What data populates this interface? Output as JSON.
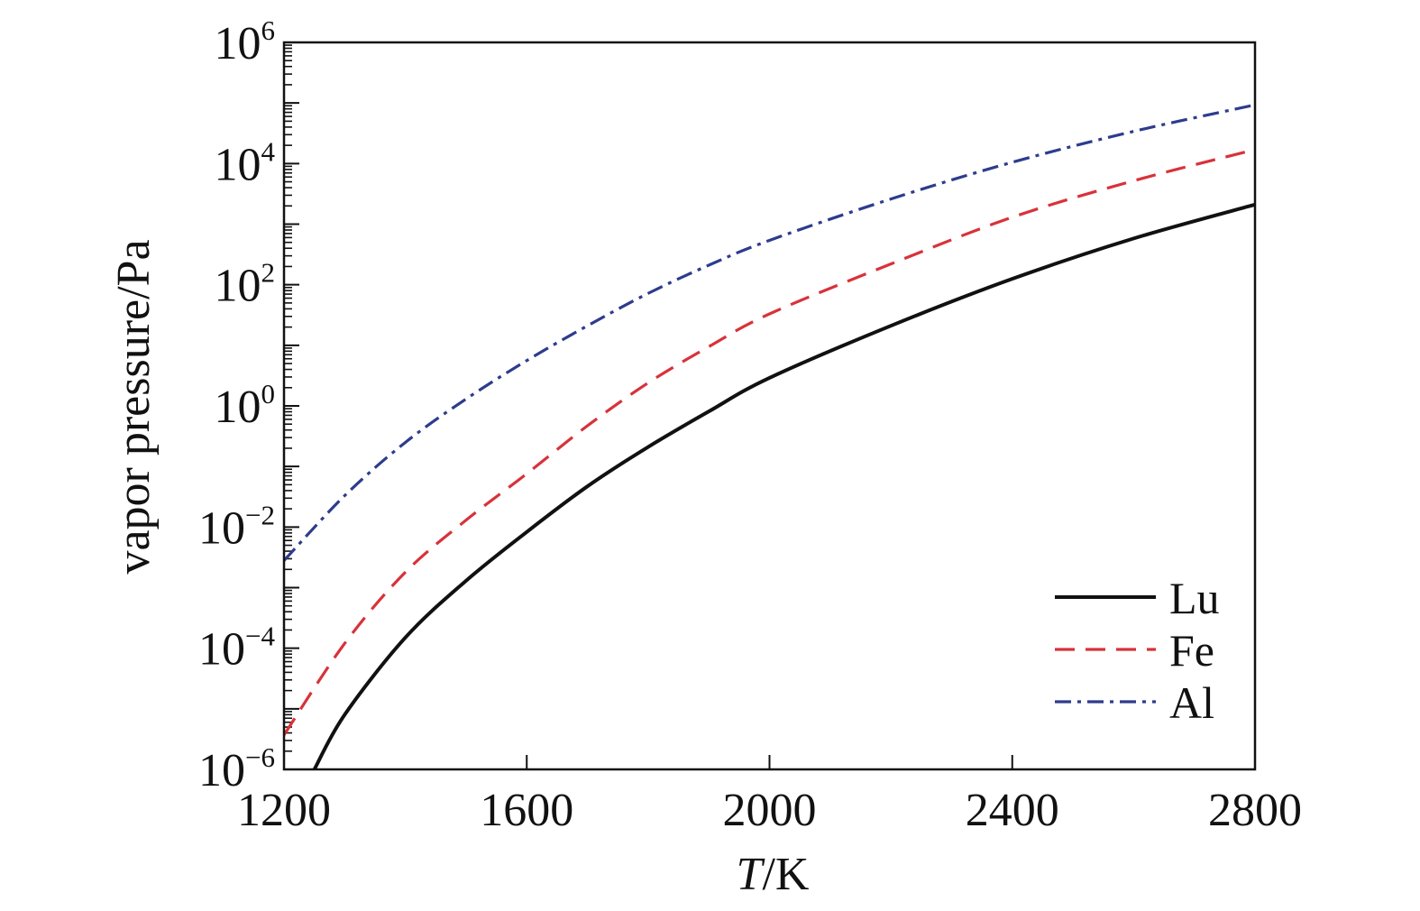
{
  "chart_data": {
    "type": "line",
    "ylabel": "vapor pressure/Pa",
    "xlabel": {
      "symbol": "T",
      "unit": "/K"
    },
    "xlim": [
      1200,
      2800
    ],
    "ylim": [
      1e-06,
      1000000.0
    ],
    "yscale": "log",
    "grid": false,
    "legend_position": "lower-right",
    "x_ticks": [
      {
        "value": 1200,
        "label": "1200"
      },
      {
        "value": 1600,
        "label": "1600"
      },
      {
        "value": 2000,
        "label": "2000"
      },
      {
        "value": 2400,
        "label": "2400"
      },
      {
        "value": 2800,
        "label": "2800"
      }
    ],
    "y_ticks": [
      {
        "value": 1000000.0,
        "base": "10",
        "exp": "6"
      },
      {
        "value": 10000.0,
        "base": "10",
        "exp": "4"
      },
      {
        "value": 100.0,
        "base": "10",
        "exp": "2"
      },
      {
        "value": 1.0,
        "base": "10",
        "exp": "0"
      },
      {
        "value": 0.01,
        "base": "10",
        "exp": "−2"
      },
      {
        "value": 0.0001,
        "base": "10",
        "exp": "−4"
      },
      {
        "value": 1e-06,
        "base": "10",
        "exp": "−6"
      }
    ],
    "series": [
      {
        "name": "Lu",
        "color": "#111111",
        "style": "solid",
        "x": [
          1250,
          1300,
          1400,
          1500,
          1600,
          1700,
          1800,
          1900,
          2000,
          2200,
          2400,
          2600,
          2800
        ],
        "y": [
          1e-06,
          8e-06,
          0.00015,
          0.0013,
          0.0083,
          0.047,
          0.21,
          0.81,
          2.9,
          21,
          125,
          580,
          2100
        ]
      },
      {
        "name": "Fe",
        "color": "#d8323a",
        "style": "dashed",
        "x": [
          1200,
          1300,
          1400,
          1500,
          1600,
          1700,
          1800,
          1900,
          2000,
          2200,
          2400,
          2600,
          2800
        ],
        "y": [
          3.7e-06,
          0.00012,
          0.0018,
          0.013,
          0.076,
          0.47,
          2.4,
          9.5,
          33,
          220,
          1300,
          5200,
          17000.0
        ]
      },
      {
        "name": "Al",
        "color": "#2d3c8c",
        "style": "dashdot",
        "x": [
          1200,
          1300,
          1400,
          1500,
          1600,
          1700,
          1800,
          1900,
          2000,
          2200,
          2400,
          2600,
          2800
        ],
        "y": [
          0.0028,
          0.033,
          0.25,
          1.3,
          5.6,
          21,
          72,
          210,
          540,
          2600,
          10500.0,
          34000.0,
          93000.0
        ]
      }
    ]
  }
}
